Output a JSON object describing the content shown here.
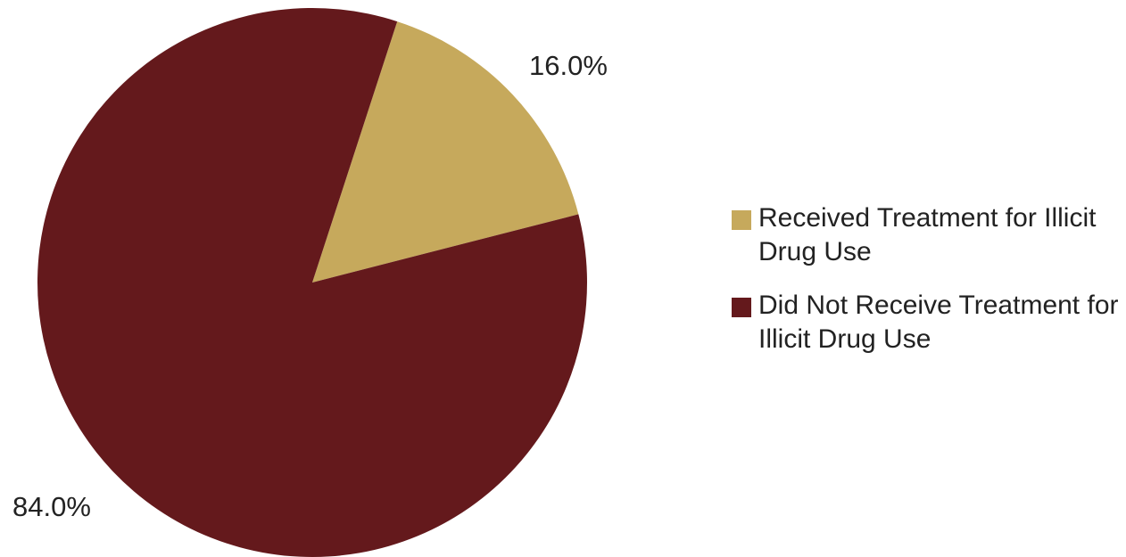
{
  "chart_data": {
    "type": "pie",
    "slices": [
      {
        "label": "Received Treatment for Illicit Drug Use",
        "value": 16.0,
        "display": "16.0%",
        "color": "#c6a95c"
      },
      {
        "label": "Did Not Receive Treatment for Illicit Drug Use",
        "value": 84.0,
        "display": "84.0%",
        "color": "#64191c"
      }
    ],
    "legend_position": "right"
  }
}
